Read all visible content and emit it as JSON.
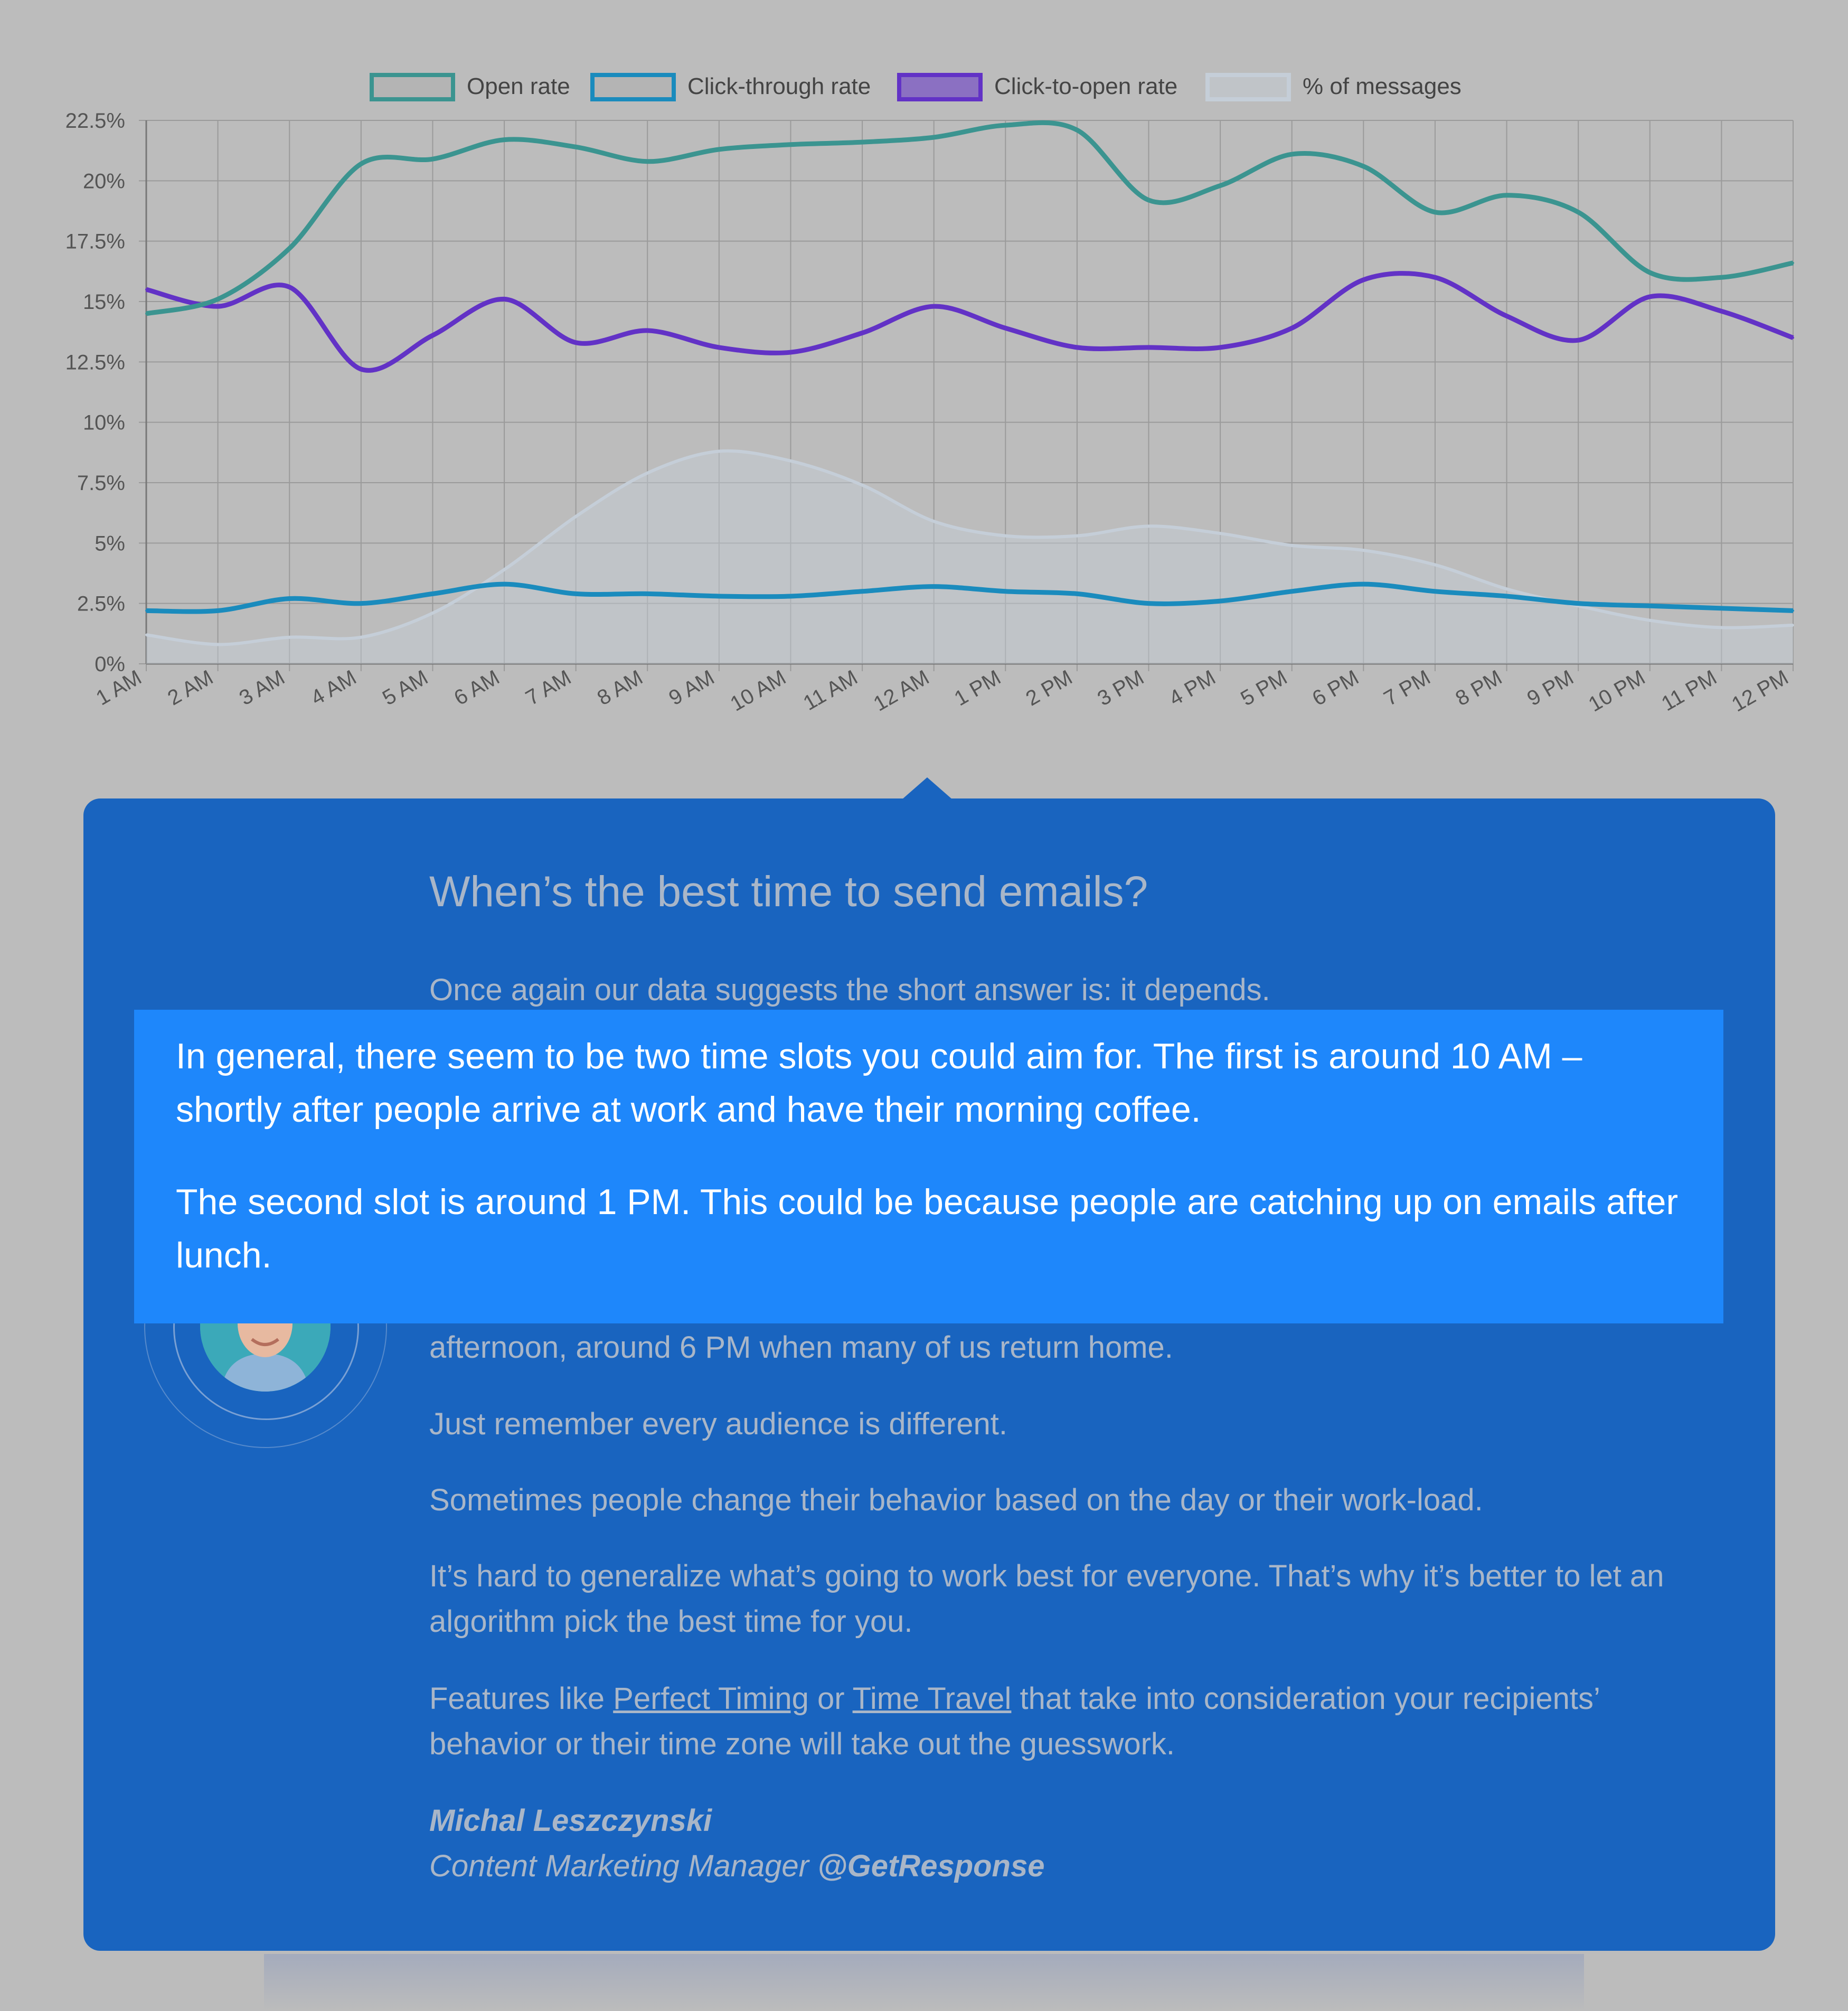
{
  "chart_data": {
    "type": "line",
    "categories": [
      "1 AM",
      "2 AM",
      "3 AM",
      "4 AM",
      "5 AM",
      "6 AM",
      "7 AM",
      "8 AM",
      "9 AM",
      "10 AM",
      "11 AM",
      "12 AM",
      "1 PM",
      "2 PM",
      "3 PM",
      "4 PM",
      "5 PM",
      "6 PM",
      "7 PM",
      "8 PM",
      "9 PM",
      "10 PM",
      "11 PM",
      "12 PM"
    ],
    "y_ticks": [
      "0%",
      "2.5%",
      "5%",
      "7.5%",
      "10%",
      "12.5%",
      "15%",
      "17.5%",
      "20%",
      "22.5%"
    ],
    "ylim": [
      0,
      22.5
    ],
    "grid": true,
    "legend_position": "top",
    "series": [
      {
        "name": "Open rate",
        "color": "#3b9490",
        "fill": "none",
        "values": [
          14.5,
          15.1,
          17.2,
          20.7,
          20.9,
          21.7,
          21.4,
          20.8,
          21.3,
          21.5,
          21.6,
          21.8,
          22.3,
          22.1,
          19.2,
          19.8,
          21.1,
          20.6,
          18.7,
          19.4,
          18.7,
          16.2,
          16.0,
          16.6
        ]
      },
      {
        "name": "Click-through rate",
        "color": "#1a8bbd",
        "fill": "none",
        "values": [
          2.2,
          2.2,
          2.7,
          2.5,
          2.9,
          3.3,
          2.9,
          2.9,
          2.8,
          2.8,
          3.0,
          3.2,
          3.0,
          2.9,
          2.5,
          2.6,
          3.0,
          3.3,
          3.0,
          2.8,
          2.5,
          2.4,
          2.3,
          2.2
        ]
      },
      {
        "name": "Click-to-open rate",
        "color": "#6232c6",
        "fill": "none",
        "values": [
          15.5,
          14.8,
          15.6,
          12.2,
          13.6,
          15.1,
          13.3,
          13.8,
          13.1,
          12.9,
          13.7,
          14.8,
          13.9,
          13.1,
          13.1,
          13.1,
          13.9,
          15.9,
          16.0,
          14.4,
          13.4,
          15.2,
          14.6,
          13.5
        ]
      },
      {
        "name": "% of messages",
        "color": "#c5ced8",
        "fill": "rgba(197,206,216,0.45)",
        "values": [
          1.2,
          0.8,
          1.1,
          1.1,
          2.1,
          3.9,
          6.1,
          7.9,
          8.8,
          8.4,
          7.4,
          5.9,
          5.3,
          5.3,
          5.7,
          5.4,
          4.9,
          4.7,
          4.1,
          3.1,
          2.4,
          1.8,
          1.5,
          1.6
        ]
      }
    ]
  },
  "card": {
    "title": "When’s the best time to send emails?",
    "intro": "Once again our data suggests the short answer is: it depends.",
    "highlight_1": "In general, there seem to be two time slots you could aim for. The first is around 10 AM – shortly after people arrive at work and have their morning coffee.",
    "highlight_2": "The second slot is around 1 PM. This could be because people are catching up on emails after lunch.",
    "p_afternoon": "afternoon, around 6 PM when many of us return home.",
    "p_audience": "Just remember every audience is different.",
    "p_behavior": "Sometimes people change their behavior based on the day or their work-load.",
    "p_generalize": "It’s hard to generalize what’s going to work best for everyone. That’s why it’s better to let an algorithm pick the best time for you.",
    "p_features_before": "Features like ",
    "link_perfect_timing": "Perfect Timing",
    "p_features_or": " or ",
    "link_time_travel": "Time Travel",
    "p_features_after": " that take into consideration your recipients’ behavior or their time zone will take out the guesswork.",
    "author_name": "Michal Leszczynski",
    "author_role": "Content Marketing Manager ",
    "author_handle": "@GetResponse"
  }
}
